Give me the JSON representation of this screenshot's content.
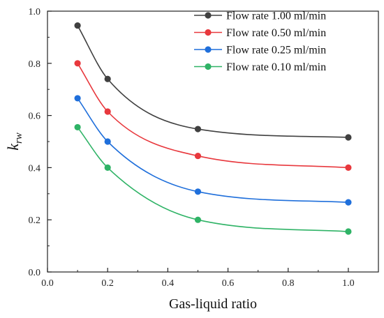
{
  "chart_data": {
    "type": "line",
    "xlabel": "Gas-liquid ratio",
    "ylabel_main": "k",
    "ylabel_sub": "rw",
    "xlim": [
      0.0,
      1.1
    ],
    "ylim": [
      0.0,
      1.0
    ],
    "x_ticks": [
      "0.0",
      "0.2",
      "0.4",
      "0.6",
      "0.8",
      "1.0"
    ],
    "y_ticks": [
      "0.0",
      "0.2",
      "0.4",
      "0.6",
      "0.8",
      "1.0"
    ],
    "grid": false,
    "legend_position": "top-right",
    "x": [
      0.1,
      0.2,
      0.5,
      1.0
    ],
    "series": [
      {
        "name": "Flow rate 1.00 ml/min",
        "color": "#404040",
        "values": [
          0.945,
          0.74,
          0.548,
          0.516
        ]
      },
      {
        "name": "Flow rate 0.50 ml/min",
        "color": "#e8383d",
        "values": [
          0.8,
          0.615,
          0.445,
          0.4
        ]
      },
      {
        "name": "Flow rate 0.25 ml/min",
        "color": "#1f6fdb",
        "values": [
          0.666,
          0.5,
          0.308,
          0.267
        ]
      },
      {
        "name": "Flow rate 0.10 ml/min",
        "color": "#2fb366",
        "values": [
          0.555,
          0.4,
          0.2,
          0.155
        ]
      }
    ]
  }
}
